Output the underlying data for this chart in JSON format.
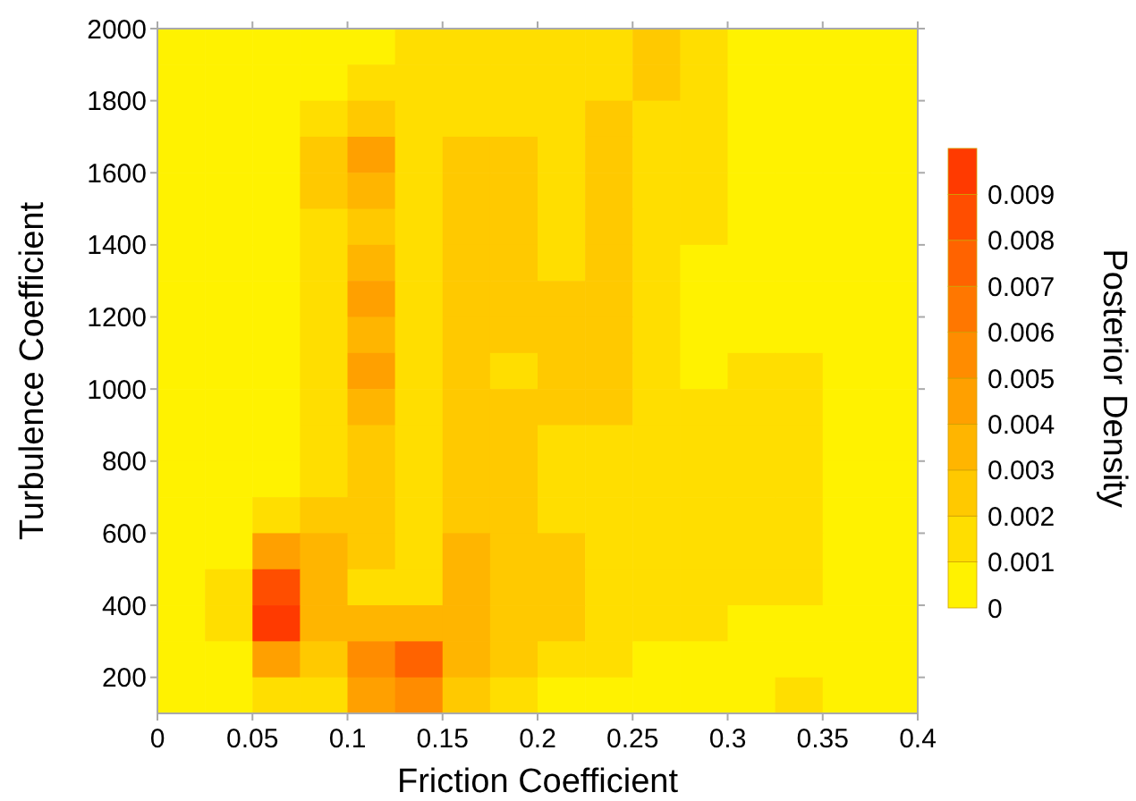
{
  "chart_data": {
    "type": "heatmap",
    "xlabel": "Friction Coefficient",
    "ylabel": "Turbulence Coefficient",
    "clabel": "Posterior Density",
    "x": [
      0.0125,
      0.0375,
      0.0625,
      0.0875,
      0.1125,
      0.1375,
      0.1625,
      0.1875,
      0.2125,
      0.2375,
      0.2625,
      0.2875,
      0.3125,
      0.3375,
      0.3625,
      0.3875
    ],
    "y": [
      1950,
      1850,
      1750,
      1650,
      1550,
      1450,
      1350,
      1250,
      1150,
      1050,
      950,
      850,
      750,
      650,
      550,
      450,
      350,
      250,
      150
    ],
    "xlim": [
      0,
      0.4
    ],
    "xticks": [
      0,
      0.05,
      0.1,
      0.15,
      0.2,
      0.25,
      0.3,
      0.35,
      0.4
    ],
    "ylim": [
      100,
      2000
    ],
    "yticks": [
      200,
      400,
      600,
      800,
      1000,
      1200,
      1400,
      1600,
      1800,
      2000
    ],
    "clim": [
      0,
      0.01
    ],
    "cticks": [
      0,
      0.001,
      0.002,
      0.003,
      0.004,
      0.005,
      0.006,
      0.007,
      0.008,
      0.009
    ],
    "cells": [
      [
        0.0005,
        0.0005,
        0.0005,
        0.0005,
        0.0005,
        0.0015,
        0.0015,
        0.0015,
        0.0015,
        0.0015,
        0.0025,
        0.0015,
        0.0005,
        0.0005,
        0.0005,
        0.0005
      ],
      [
        0.0005,
        0.0005,
        0.0005,
        0.0005,
        0.0015,
        0.0015,
        0.0015,
        0.0015,
        0.0015,
        0.0015,
        0.0025,
        0.0015,
        0.0005,
        0.0005,
        0.0005,
        0.0005
      ],
      [
        0.0005,
        0.0005,
        0.0005,
        0.0015,
        0.0025,
        0.0015,
        0.0015,
        0.0015,
        0.0015,
        0.0025,
        0.0015,
        0.0015,
        0.0005,
        0.0005,
        0.0005,
        0.0005
      ],
      [
        0.0005,
        0.0005,
        0.0005,
        0.0025,
        0.0045,
        0.0015,
        0.0025,
        0.0025,
        0.0015,
        0.0025,
        0.0015,
        0.0015,
        0.0005,
        0.0005,
        0.0005,
        0.0005
      ],
      [
        0.0005,
        0.0005,
        0.0005,
        0.0025,
        0.0035,
        0.0015,
        0.0025,
        0.0025,
        0.0015,
        0.0025,
        0.0015,
        0.0015,
        0.0005,
        0.0005,
        0.0005,
        0.0005
      ],
      [
        0.0005,
        0.0005,
        0.0005,
        0.0015,
        0.0025,
        0.0015,
        0.0025,
        0.0025,
        0.0015,
        0.0025,
        0.0015,
        0.0015,
        0.0005,
        0.0005,
        0.0005,
        0.0005
      ],
      [
        0.0005,
        0.0005,
        0.0005,
        0.0015,
        0.0035,
        0.0015,
        0.0025,
        0.0025,
        0.0015,
        0.0025,
        0.0015,
        0.0005,
        0.0005,
        0.0005,
        0.0005,
        0.0005
      ],
      [
        0.0005,
        0.0005,
        0.0005,
        0.0015,
        0.0045,
        0.0015,
        0.0025,
        0.0025,
        0.0025,
        0.0025,
        0.0015,
        0.0005,
        0.0005,
        0.0005,
        0.0005,
        0.0005
      ],
      [
        0.0005,
        0.0005,
        0.0005,
        0.0015,
        0.0035,
        0.0015,
        0.0025,
        0.0025,
        0.0025,
        0.0025,
        0.0015,
        0.0005,
        0.0005,
        0.0005,
        0.0005,
        0.0005
      ],
      [
        0.0005,
        0.0005,
        0.0005,
        0.0015,
        0.0045,
        0.0015,
        0.0025,
        0.0015,
        0.0025,
        0.0025,
        0.0015,
        0.0005,
        0.0015,
        0.0015,
        0.0005,
        0.0005
      ],
      [
        0.0005,
        0.0005,
        0.0005,
        0.0015,
        0.0035,
        0.0015,
        0.0025,
        0.0025,
        0.0025,
        0.0025,
        0.0015,
        0.0015,
        0.0015,
        0.0015,
        0.0005,
        0.0005
      ],
      [
        0.0005,
        0.0005,
        0.0005,
        0.0015,
        0.0025,
        0.0015,
        0.0025,
        0.0025,
        0.0015,
        0.0015,
        0.0015,
        0.0015,
        0.0015,
        0.0015,
        0.0005,
        0.0005
      ],
      [
        0.0005,
        0.0005,
        0.0005,
        0.0015,
        0.0025,
        0.0015,
        0.0025,
        0.0025,
        0.0015,
        0.0015,
        0.0015,
        0.0015,
        0.0015,
        0.0015,
        0.0005,
        0.0005
      ],
      [
        0.0005,
        0.0005,
        0.0015,
        0.0025,
        0.0025,
        0.0015,
        0.0025,
        0.0025,
        0.0015,
        0.0015,
        0.0015,
        0.0015,
        0.0015,
        0.0015,
        0.0005,
        0.0005
      ],
      [
        0.0005,
        0.0005,
        0.0045,
        0.0035,
        0.0025,
        0.0015,
        0.0035,
        0.0025,
        0.0025,
        0.0015,
        0.0015,
        0.0015,
        0.0015,
        0.0015,
        0.0005,
        0.0005
      ],
      [
        0.0005,
        0.0015,
        0.0085,
        0.0035,
        0.0015,
        0.0015,
        0.0035,
        0.0025,
        0.0025,
        0.0015,
        0.0015,
        0.0015,
        0.0015,
        0.0015,
        0.0005,
        0.0005
      ],
      [
        0.0005,
        0.0015,
        0.0095,
        0.0035,
        0.0035,
        0.0035,
        0.0035,
        0.0025,
        0.0025,
        0.0015,
        0.0015,
        0.0015,
        0.0005,
        0.0005,
        0.0005,
        0.0005
      ],
      [
        0.0005,
        0.0005,
        0.0045,
        0.0025,
        0.0055,
        0.0075,
        0.0035,
        0.0025,
        0.0015,
        0.0015,
        0.0005,
        0.0005,
        0.0005,
        0.0005,
        0.0005,
        0.0005
      ],
      [
        0.0005,
        0.0005,
        0.0015,
        0.0015,
        0.0045,
        0.0055,
        0.0025,
        0.0015,
        0.0005,
        0.0005,
        0.0005,
        0.0005,
        0.0005,
        0.0015,
        0.0005,
        0.0005
      ]
    ]
  }
}
